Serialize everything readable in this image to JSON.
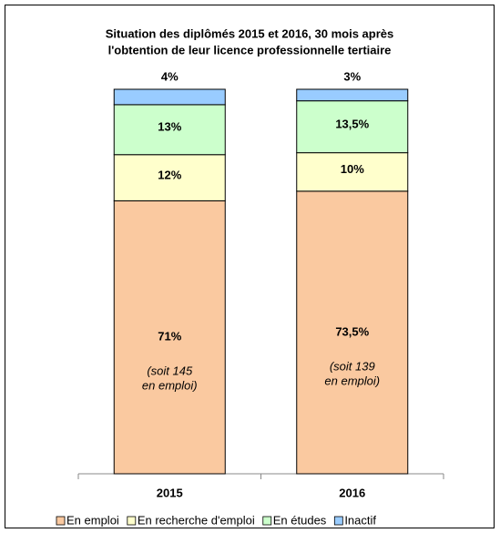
{
  "chart_data": {
    "type": "stacked_bar",
    "title": [
      "Situation des diplômés 2015 et 2016, 30 mois après",
      "l'obtention de leur licence professionnelle tertiaire"
    ],
    "categories": [
      "2015",
      "2016"
    ],
    "series": [
      {
        "name": "En emploi",
        "color": "#fac9a0",
        "values": [
          71,
          73.5
        ],
        "value_labels": [
          "71%",
          "73,5%"
        ]
      },
      {
        "name": "En recherche d'emploi",
        "color": "#ffffcc",
        "values": [
          12,
          10
        ],
        "value_labels": [
          "12%",
          "10%"
        ]
      },
      {
        "name": "En études",
        "color": "#ccffcc",
        "values": [
          13,
          13.5
        ],
        "value_labels": [
          "13%",
          "13,5%"
        ]
      },
      {
        "name": "Inactif",
        "color": "#99ccff",
        "values": [
          4,
          3
        ],
        "value_labels": [
          "4%",
          "3%"
        ]
      }
    ],
    "annotations": [
      [
        "(soit 145",
        "en emploi)"
      ],
      [
        "(soit 139",
        "en emploi)"
      ]
    ],
    "legend": "bottom"
  }
}
